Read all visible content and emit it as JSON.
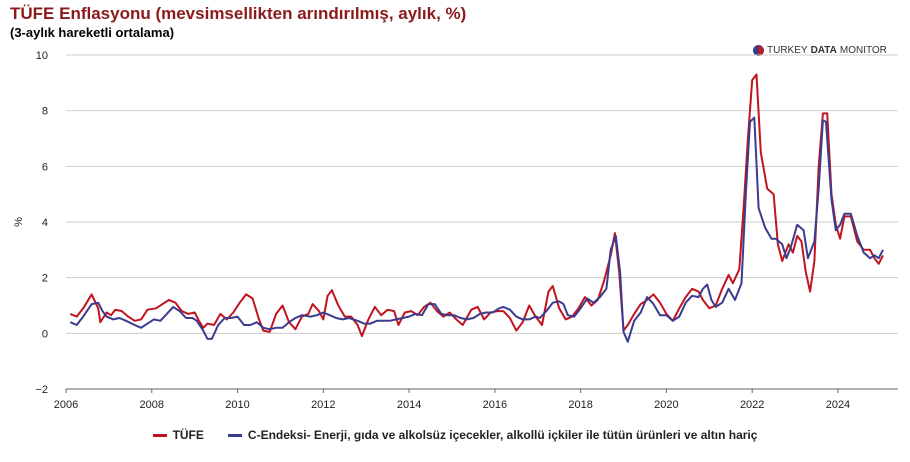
{
  "header": {
    "title": "TÜFE Enflasyonu (mevsimsellikten arındırılmış, aylık, %)",
    "subtitle": "(3-aylık hareketli ortalama)"
  },
  "brand": {
    "part1": "TURKEY",
    "part2": "DATA",
    "part3": "MONITOR"
  },
  "colors": {
    "tufe": "#c0141e",
    "c_index": "#3b3b8f",
    "grid": "#cccccc"
  },
  "chart_data": {
    "type": "line",
    "title": "TÜFE Enflasyonu (mevsimsellikten arındırılmış, aylık, %)",
    "subtitle": "(3-aylık hareketli ortalama)",
    "ylabel": "%",
    "xlabel": "",
    "xlim": [
      2006,
      2025.4
    ],
    "ylim": [
      -2,
      10
    ],
    "xticks": [
      2006,
      2008,
      2010,
      2012,
      2014,
      2016,
      2018,
      2020,
      2022,
      2024
    ],
    "yticks": [
      -2,
      0,
      2,
      4,
      6,
      8,
      10
    ],
    "grid": "horizontal",
    "legend_position": "bottom",
    "series": [
      {
        "name": "TÜFE",
        "points": [
          [
            2006.1,
            0.7
          ],
          [
            2006.25,
            0.6
          ],
          [
            2006.4,
            0.9
          ],
          [
            2006.6,
            1.4
          ],
          [
            2006.75,
            0.9
          ],
          [
            2006.8,
            0.4
          ],
          [
            2006.95,
            0.75
          ],
          [
            2007.05,
            0.65
          ],
          [
            2007.15,
            0.85
          ],
          [
            2007.3,
            0.8
          ],
          [
            2007.45,
            0.6
          ],
          [
            2007.6,
            0.45
          ],
          [
            2007.75,
            0.5
          ],
          [
            2007.9,
            0.85
          ],
          [
            2008.1,
            0.9
          ],
          [
            2008.25,
            1.05
          ],
          [
            2008.4,
            1.2
          ],
          [
            2008.55,
            1.1
          ],
          [
            2008.7,
            0.8
          ],
          [
            2008.85,
            0.7
          ],
          [
            2009.0,
            0.75
          ],
          [
            2009.1,
            0.45
          ],
          [
            2009.2,
            0.2
          ],
          [
            2009.3,
            0.35
          ],
          [
            2009.45,
            0.3
          ],
          [
            2009.6,
            0.7
          ],
          [
            2009.75,
            0.5
          ],
          [
            2009.9,
            0.75
          ],
          [
            2010.05,
            1.1
          ],
          [
            2010.2,
            1.4
          ],
          [
            2010.35,
            1.25
          ],
          [
            2010.5,
            0.5
          ],
          [
            2010.6,
            0.1
          ],
          [
            2010.75,
            0.05
          ],
          [
            2010.9,
            0.7
          ],
          [
            2011.05,
            1.0
          ],
          [
            2011.2,
            0.4
          ],
          [
            2011.35,
            0.15
          ],
          [
            2011.5,
            0.6
          ],
          [
            2011.65,
            0.7
          ],
          [
            2011.75,
            1.05
          ],
          [
            2011.9,
            0.8
          ],
          [
            2012.0,
            0.5
          ],
          [
            2012.1,
            1.35
          ],
          [
            2012.2,
            1.55
          ],
          [
            2012.35,
            1.0
          ],
          [
            2012.5,
            0.6
          ],
          [
            2012.65,
            0.6
          ],
          [
            2012.8,
            0.3
          ],
          [
            2012.9,
            -0.1
          ],
          [
            2013.05,
            0.5
          ],
          [
            2013.2,
            0.95
          ],
          [
            2013.35,
            0.65
          ],
          [
            2013.5,
            0.85
          ],
          [
            2013.65,
            0.8
          ],
          [
            2013.75,
            0.3
          ],
          [
            2013.9,
            0.75
          ],
          [
            2014.05,
            0.8
          ],
          [
            2014.2,
            0.65
          ],
          [
            2014.35,
            0.95
          ],
          [
            2014.5,
            1.1
          ],
          [
            2014.65,
            0.8
          ],
          [
            2014.8,
            0.6
          ],
          [
            2014.95,
            0.75
          ],
          [
            2015.1,
            0.5
          ],
          [
            2015.25,
            0.3
          ],
          [
            2015.45,
            0.85
          ],
          [
            2015.6,
            0.95
          ],
          [
            2015.75,
            0.5
          ],
          [
            2015.9,
            0.75
          ],
          [
            2016.05,
            0.8
          ],
          [
            2016.2,
            0.8
          ],
          [
            2016.35,
            0.55
          ],
          [
            2016.5,
            0.1
          ],
          [
            2016.65,
            0.4
          ],
          [
            2016.8,
            1.0
          ],
          [
            2016.95,
            0.6
          ],
          [
            2017.1,
            0.3
          ],
          [
            2017.25,
            1.5
          ],
          [
            2017.35,
            1.7
          ],
          [
            2017.5,
            0.9
          ],
          [
            2017.65,
            0.5
          ],
          [
            2017.8,
            0.6
          ],
          [
            2017.95,
            0.9
          ],
          [
            2018.1,
            1.3
          ],
          [
            2018.25,
            1.0
          ],
          [
            2018.4,
            1.2
          ],
          [
            2018.55,
            1.9
          ],
          [
            2018.7,
            2.8
          ],
          [
            2018.8,
            3.6
          ],
          [
            2018.9,
            2.2
          ],
          [
            2019.0,
            0.1
          ],
          [
            2019.1,
            0.3
          ],
          [
            2019.25,
            0.7
          ],
          [
            2019.4,
            1.05
          ],
          [
            2019.55,
            1.2
          ],
          [
            2019.7,
            1.4
          ],
          [
            2019.85,
            1.1
          ],
          [
            2020.0,
            0.7
          ],
          [
            2020.15,
            0.45
          ],
          [
            2020.3,
            0.9
          ],
          [
            2020.45,
            1.3
          ],
          [
            2020.6,
            1.6
          ],
          [
            2020.75,
            1.5
          ],
          [
            2020.85,
            1.2
          ],
          [
            2021.0,
            0.9
          ],
          [
            2021.15,
            1.0
          ],
          [
            2021.3,
            1.6
          ],
          [
            2021.45,
            2.1
          ],
          [
            2021.55,
            1.8
          ],
          [
            2021.7,
            2.3
          ],
          [
            2021.8,
            4.5
          ],
          [
            2021.9,
            7.0
          ],
          [
            2022.0,
            9.1
          ],
          [
            2022.1,
            9.3
          ],
          [
            2022.2,
            6.5
          ],
          [
            2022.35,
            5.2
          ],
          [
            2022.5,
            5.0
          ],
          [
            2022.6,
            3.2
          ],
          [
            2022.7,
            2.6
          ],
          [
            2022.85,
            3.2
          ],
          [
            2022.95,
            2.9
          ],
          [
            2023.05,
            3.5
          ],
          [
            2023.15,
            3.3
          ],
          [
            2023.25,
            2.2
          ],
          [
            2023.35,
            1.5
          ],
          [
            2023.45,
            2.6
          ],
          [
            2023.55,
            6.0
          ],
          [
            2023.65,
            7.9
          ],
          [
            2023.75,
            7.9
          ],
          [
            2023.85,
            5.0
          ],
          [
            2023.95,
            3.9
          ],
          [
            2024.05,
            3.4
          ],
          [
            2024.15,
            4.2
          ],
          [
            2024.3,
            4.2
          ],
          [
            2024.45,
            3.3
          ],
          [
            2024.6,
            3.0
          ],
          [
            2024.75,
            3.0
          ],
          [
            2024.85,
            2.7
          ],
          [
            2024.95,
            2.5
          ],
          [
            2025.05,
            2.8
          ]
        ]
      },
      {
        "name": "C-Endeksi- Enerji, gıda ve alkolsüz içecekler, alkollü içkiler ile tütün ürünleri ve altın hariç",
        "points": [
          [
            2006.1,
            0.4
          ],
          [
            2006.25,
            0.3
          ],
          [
            2006.4,
            0.6
          ],
          [
            2006.6,
            1.05
          ],
          [
            2006.75,
            1.1
          ],
          [
            2006.85,
            0.8
          ],
          [
            2006.95,
            0.6
          ],
          [
            2007.1,
            0.5
          ],
          [
            2007.25,
            0.55
          ],
          [
            2007.4,
            0.45
          ],
          [
            2007.6,
            0.3
          ],
          [
            2007.75,
            0.2
          ],
          [
            2007.9,
            0.35
          ],
          [
            2008.05,
            0.5
          ],
          [
            2008.2,
            0.45
          ],
          [
            2008.35,
            0.7
          ],
          [
            2008.5,
            0.95
          ],
          [
            2008.65,
            0.8
          ],
          [
            2008.8,
            0.55
          ],
          [
            2008.95,
            0.55
          ],
          [
            2009.05,
            0.45
          ],
          [
            2009.2,
            0.1
          ],
          [
            2009.3,
            -0.2
          ],
          [
            2009.4,
            -0.2
          ],
          [
            2009.55,
            0.3
          ],
          [
            2009.7,
            0.55
          ],
          [
            2009.85,
            0.55
          ],
          [
            2010.0,
            0.6
          ],
          [
            2010.15,
            0.3
          ],
          [
            2010.3,
            0.3
          ],
          [
            2010.45,
            0.4
          ],
          [
            2010.6,
            0.2
          ],
          [
            2010.75,
            0.15
          ],
          [
            2010.9,
            0.2
          ],
          [
            2011.05,
            0.2
          ],
          [
            2011.2,
            0.4
          ],
          [
            2011.35,
            0.55
          ],
          [
            2011.5,
            0.65
          ],
          [
            2011.7,
            0.6
          ],
          [
            2011.85,
            0.65
          ],
          [
            2012.0,
            0.75
          ],
          [
            2012.15,
            0.65
          ],
          [
            2012.3,
            0.55
          ],
          [
            2012.45,
            0.5
          ],
          [
            2012.6,
            0.55
          ],
          [
            2012.8,
            0.45
          ],
          [
            2012.95,
            0.35
          ],
          [
            2013.1,
            0.35
          ],
          [
            2013.25,
            0.45
          ],
          [
            2013.4,
            0.45
          ],
          [
            2013.55,
            0.45
          ],
          [
            2013.7,
            0.5
          ],
          [
            2013.85,
            0.55
          ],
          [
            2014.0,
            0.6
          ],
          [
            2014.15,
            0.7
          ],
          [
            2014.3,
            0.65
          ],
          [
            2014.45,
            1.05
          ],
          [
            2014.6,
            1.05
          ],
          [
            2014.75,
            0.7
          ],
          [
            2014.9,
            0.65
          ],
          [
            2015.05,
            0.65
          ],
          [
            2015.2,
            0.55
          ],
          [
            2015.35,
            0.5
          ],
          [
            2015.5,
            0.55
          ],
          [
            2015.65,
            0.7
          ],
          [
            2015.8,
            0.75
          ],
          [
            2015.95,
            0.75
          ],
          [
            2016.1,
            0.9
          ],
          [
            2016.2,
            0.95
          ],
          [
            2016.35,
            0.85
          ],
          [
            2016.5,
            0.6
          ],
          [
            2016.65,
            0.5
          ],
          [
            2016.8,
            0.5
          ],
          [
            2016.95,
            0.6
          ],
          [
            2017.05,
            0.55
          ],
          [
            2017.2,
            0.8
          ],
          [
            2017.35,
            1.1
          ],
          [
            2017.5,
            1.15
          ],
          [
            2017.6,
            1.05
          ],
          [
            2017.7,
            0.65
          ],
          [
            2017.85,
            0.6
          ],
          [
            2018.0,
            0.9
          ],
          [
            2018.15,
            1.25
          ],
          [
            2018.3,
            1.1
          ],
          [
            2018.45,
            1.3
          ],
          [
            2018.6,
            1.6
          ],
          [
            2018.7,
            3.0
          ],
          [
            2018.82,
            3.5
          ],
          [
            2018.92,
            2.2
          ],
          [
            2019.0,
            0.05
          ],
          [
            2019.1,
            -0.3
          ],
          [
            2019.25,
            0.45
          ],
          [
            2019.4,
            0.75
          ],
          [
            2019.55,
            1.3
          ],
          [
            2019.7,
            1.05
          ],
          [
            2019.85,
            0.65
          ],
          [
            2020.0,
            0.65
          ],
          [
            2020.15,
            0.45
          ],
          [
            2020.3,
            0.6
          ],
          [
            2020.45,
            1.1
          ],
          [
            2020.6,
            1.35
          ],
          [
            2020.75,
            1.3
          ],
          [
            2020.85,
            1.6
          ],
          [
            2020.95,
            1.75
          ],
          [
            2021.05,
            1.2
          ],
          [
            2021.15,
            0.95
          ],
          [
            2021.3,
            1.1
          ],
          [
            2021.45,
            1.6
          ],
          [
            2021.6,
            1.2
          ],
          [
            2021.75,
            1.8
          ],
          [
            2021.85,
            5.0
          ],
          [
            2021.95,
            7.6
          ],
          [
            2022.05,
            7.75
          ],
          [
            2022.15,
            4.5
          ],
          [
            2022.3,
            3.8
          ],
          [
            2022.45,
            3.4
          ],
          [
            2022.55,
            3.4
          ],
          [
            2022.7,
            3.2
          ],
          [
            2022.8,
            2.7
          ],
          [
            2022.9,
            3.1
          ],
          [
            2023.05,
            3.9
          ],
          [
            2023.2,
            3.7
          ],
          [
            2023.3,
            2.7
          ],
          [
            2023.45,
            3.3
          ],
          [
            2023.55,
            5.2
          ],
          [
            2023.65,
            7.65
          ],
          [
            2023.72,
            7.6
          ],
          [
            2023.85,
            4.8
          ],
          [
            2023.95,
            3.7
          ],
          [
            2024.05,
            3.9
          ],
          [
            2024.15,
            4.3
          ],
          [
            2024.3,
            4.3
          ],
          [
            2024.45,
            3.5
          ],
          [
            2024.6,
            2.9
          ],
          [
            2024.75,
            2.7
          ],
          [
            2024.85,
            2.8
          ],
          [
            2024.95,
            2.7
          ],
          [
            2025.05,
            3.0
          ]
        ]
      }
    ]
  }
}
